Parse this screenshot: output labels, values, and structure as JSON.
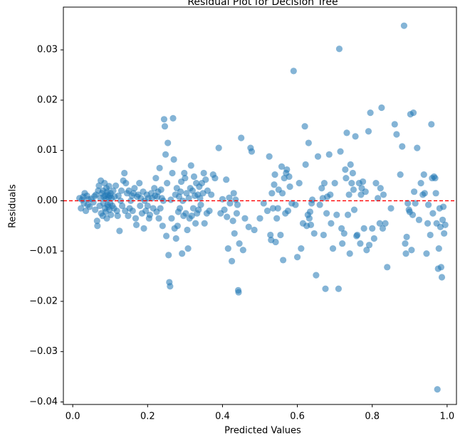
{
  "chart_data": {
    "type": "scatter",
    "title": "Residual Plot for Decision Tree",
    "xlabel": "Predicted Values",
    "ylabel": "Residuals",
    "xlim": [
      -0.025,
      1.025
    ],
    "ylim": [
      -0.0405,
      0.0385
    ],
    "xticks": [
      0.0,
      0.2,
      0.4,
      0.6,
      0.8,
      1.0
    ],
    "xtick_labels": [
      "0.0",
      "0.2",
      "0.4",
      "0.6",
      "0.8",
      "1.0"
    ],
    "yticks": [
      -0.04,
      -0.03,
      -0.02,
      -0.01,
      0.0,
      0.01,
      0.02,
      0.03
    ],
    "ytick_labels": [
      "−0.04",
      "−0.03",
      "−0.02",
      "−0.01",
      "0.00",
      "0.01",
      "0.02",
      "0.03"
    ],
    "reference_line": {
      "y": 0.0,
      "style": "dashed",
      "color": "#ff0000"
    },
    "marker_color": "#1f77b4",
    "marker_alpha": 0.55,
    "grid": false,
    "points": [
      [
        0.018,
        0.0005
      ],
      [
        0.022,
        -0.0015
      ],
      [
        0.025,
        0.0002
      ],
      [
        0.028,
        0.0008
      ],
      [
        0.03,
        -0.0005
      ],
      [
        0.032,
        0.0015
      ],
      [
        0.035,
        -0.002
      ],
      [
        0.038,
        0.001
      ],
      [
        0.04,
        -0.0008
      ],
      [
        0.042,
        0.0003
      ],
      [
        0.045,
        -0.0012
      ],
      [
        0.05,
        0.0004
      ],
      [
        0.055,
        -0.0003
      ],
      [
        0.058,
        0.0009
      ],
      [
        0.06,
        -0.0018
      ],
      [
        0.062,
        0.0012
      ],
      [
        0.065,
        -0.004
      ],
      [
        0.066,
        -0.005
      ],
      [
        0.068,
        0.002
      ],
      [
        0.07,
        0.003
      ],
      [
        0.072,
        -0.001
      ],
      [
        0.074,
        0.0005
      ],
      [
        0.075,
        0.004
      ],
      [
        0.076,
        -0.0025
      ],
      [
        0.078,
        0.0015
      ],
      [
        0.08,
        -0.003
      ],
      [
        0.081,
        0.002
      ],
      [
        0.082,
        -0.0005
      ],
      [
        0.083,
        0.0008
      ],
      [
        0.085,
        0.0035
      ],
      [
        0.086,
        -0.0015
      ],
      [
        0.087,
        0.001
      ],
      [
        0.088,
        -0.0022
      ],
      [
        0.089,
        0.0004
      ],
      [
        0.09,
        0.0025
      ],
      [
        0.091,
        -0.0035
      ],
      [
        0.092,
        0.0018
      ],
      [
        0.093,
        -0.0008
      ],
      [
        0.094,
        0.0012
      ],
      [
        0.095,
        -0.0012
      ],
      [
        0.096,
        0.0006
      ],
      [
        0.097,
        0.0029
      ],
      [
        0.098,
        -0.0018
      ],
      [
        0.099,
        0.001
      ],
      [
        0.1,
        -0.0005
      ],
      [
        0.101,
        0.0015
      ],
      [
        0.102,
        -0.0028
      ],
      [
        0.104,
        0.0005
      ],
      [
        0.106,
        -0.001
      ],
      [
        0.108,
        0.002
      ],
      [
        0.11,
        -0.0015
      ],
      [
        0.112,
        0.0008
      ],
      [
        0.115,
        0.003
      ],
      [
        0.118,
        -0.002
      ],
      [
        0.12,
        -0.003
      ],
      [
        0.122,
        0.001
      ],
      [
        0.125,
        -0.006
      ],
      [
        0.128,
        0.0
      ],
      [
        0.13,
        0.002
      ],
      [
        0.132,
        -0.001
      ],
      [
        0.135,
        0.004
      ],
      [
        0.138,
        0.0055
      ],
      [
        0.14,
        -0.002
      ],
      [
        0.142,
        0.0035
      ],
      [
        0.145,
        0.0015
      ],
      [
        0.148,
        -0.003
      ],
      [
        0.15,
        0.002
      ],
      [
        0.152,
        -0.0015
      ],
      [
        0.155,
        0.0
      ],
      [
        0.158,
        0.001
      ],
      [
        0.16,
        -0.002
      ],
      [
        0.162,
        0.0015
      ],
      [
        0.165,
        0.0025
      ],
      [
        0.168,
        -0.0035
      ],
      [
        0.17,
        -0.0048
      ],
      [
        0.172,
        0.0008
      ],
      [
        0.175,
        0.0012
      ],
      [
        0.178,
        0.0035
      ],
      [
        0.18,
        -0.001
      ],
      [
        0.182,
        0.0005
      ],
      [
        0.185,
        -0.0025
      ],
      [
        0.188,
        0.0018
      ],
      [
        0.19,
        -0.0055
      ],
      [
        0.192,
        0.0
      ],
      [
        0.195,
        -0.002
      ],
      [
        0.198,
        0.0012
      ],
      [
        0.2,
        -0.001
      ],
      [
        0.202,
        0.0005
      ],
      [
        0.204,
        -0.0035
      ],
      [
        0.206,
        -0.0028
      ],
      [
        0.21,
        0.0015
      ],
      [
        0.212,
        0.0005
      ],
      [
        0.215,
        -0.0015
      ],
      [
        0.218,
        0.0025
      ],
      [
        0.22,
        0.001
      ],
      [
        0.222,
        0.0045
      ],
      [
        0.224,
        -0.0022
      ],
      [
        0.226,
        0.0008
      ],
      [
        0.228,
        0.0018
      ],
      [
        0.23,
        -0.0035
      ],
      [
        0.232,
        0.0065
      ],
      [
        0.234,
        -0.0015
      ],
      [
        0.236,
        0.0022
      ],
      [
        0.238,
        0.0005
      ],
      [
        0.24,
        -0.005
      ],
      [
        0.242,
        0.0
      ],
      [
        0.244,
        0.0162
      ],
      [
        0.246,
        0.0148
      ],
      [
        0.248,
        0.0092
      ],
      [
        0.25,
        -0.007
      ],
      [
        0.252,
        0.0035
      ],
      [
        0.254,
        0.0115
      ],
      [
        0.256,
        -0.0108
      ],
      [
        0.258,
        -0.0162
      ],
      [
        0.26,
        -0.017
      ],
      [
        0.262,
        0.0002
      ],
      [
        0.264,
        -0.0035
      ],
      [
        0.266,
        0.0055
      ],
      [
        0.268,
        0.0164
      ],
      [
        0.27,
        0.0082
      ],
      [
        0.272,
        -0.0055
      ],
      [
        0.274,
        0.0012
      ],
      [
        0.276,
        -0.0075
      ],
      [
        0.278,
        0.0025
      ],
      [
        0.28,
        -0.005
      ],
      [
        0.282,
        -0.0022
      ],
      [
        0.284,
        0.0008
      ],
      [
        0.286,
        -0.0015
      ],
      [
        0.288,
        0.0018
      ],
      [
        0.29,
        0.0038
      ],
      [
        0.292,
        -0.0105
      ],
      [
        0.294,
        0.0
      ],
      [
        0.296,
        -0.003
      ],
      [
        0.298,
        0.0055
      ],
      [
        0.3,
        0.0045
      ],
      [
        0.302,
        -0.0025
      ],
      [
        0.304,
        0.0015
      ],
      [
        0.306,
        -0.0058
      ],
      [
        0.308,
        -0.0095
      ],
      [
        0.31,
        0.0005
      ],
      [
        0.312,
        -0.0035
      ],
      [
        0.314,
        0.0025
      ],
      [
        0.316,
        0.007
      ],
      [
        0.318,
        -0.003
      ],
      [
        0.32,
        0.002
      ],
      [
        0.322,
        -0.0015
      ],
      [
        0.324,
        0.0048
      ],
      [
        0.326,
        0.001
      ],
      [
        0.328,
        -0.0045
      ],
      [
        0.33,
        0.0035
      ],
      [
        0.332,
        -0.0025
      ],
      [
        0.334,
        0.0012
      ],
      [
        0.336,
        -0.0018
      ],
      [
        0.338,
        0.0028
      ],
      [
        0.34,
        0.0005
      ],
      [
        0.342,
        -0.0008
      ],
      [
        0.345,
        0.0035
      ],
      [
        0.348,
        0.0015
      ],
      [
        0.35,
        0.0055
      ],
      [
        0.352,
        -0.0045
      ],
      [
        0.355,
        0.0042
      ],
      [
        0.358,
        -0.0025
      ],
      [
        0.36,
        0.002
      ],
      [
        0.365,
        -0.002
      ],
      [
        0.37,
        0.0012
      ],
      [
        0.375,
        0.0052
      ],
      [
        0.38,
        0.0045
      ],
      [
        0.39,
        0.0105
      ],
      [
        0.395,
        -0.0025
      ],
      [
        0.4,
        0.0003
      ],
      [
        0.405,
        -0.0018
      ],
      [
        0.41,
        0.0042
      ],
      [
        0.412,
        -0.0032
      ],
      [
        0.415,
        -0.0095
      ],
      [
        0.418,
        0.0006
      ],
      [
        0.42,
        -0.0005
      ],
      [
        0.425,
        -0.012
      ],
      [
        0.428,
        -0.004
      ],
      [
        0.43,
        0.0015
      ],
      [
        0.432,
        -0.0065
      ],
      [
        0.435,
        0.0002
      ],
      [
        0.438,
        -0.0025
      ],
      [
        0.44,
        -0.0008
      ],
      [
        0.442,
        -0.0178
      ],
      [
        0.443,
        -0.0182
      ],
      [
        0.445,
        -0.0085
      ],
      [
        0.45,
        0.0125
      ],
      [
        0.455,
        -0.0098
      ],
      [
        0.46,
        -0.0035
      ],
      [
        0.47,
        -0.0052
      ],
      [
        0.475,
        0.0105
      ],
      [
        0.478,
        0.0098
      ],
      [
        0.485,
        -0.0058
      ],
      [
        0.5,
        -0.0035
      ],
      [
        0.51,
        -0.0005
      ],
      [
        0.52,
        -0.002
      ],
      [
        0.525,
        0.0088
      ],
      [
        0.528,
        -0.0068
      ],
      [
        0.53,
        -0.0078
      ],
      [
        0.532,
        0.0015
      ],
      [
        0.535,
        -0.0015
      ],
      [
        0.538,
        0.0032
      ],
      [
        0.54,
        0.0052
      ],
      [
        0.542,
        -0.0082
      ],
      [
        0.545,
        -0.0035
      ],
      [
        0.548,
        -0.0015
      ],
      [
        0.55,
        0.0022
      ],
      [
        0.555,
        -0.0068
      ],
      [
        0.558,
        0.0068
      ],
      [
        0.56,
        0.0015
      ],
      [
        0.562,
        -0.0118
      ],
      [
        0.565,
        0.0045
      ],
      [
        0.568,
        -0.0025
      ],
      [
        0.57,
        0.0055
      ],
      [
        0.572,
        0.0062
      ],
      [
        0.575,
        -0.002
      ],
      [
        0.578,
        0.0048
      ],
      [
        0.58,
        0.0028
      ],
      [
        0.585,
        -0.0005
      ],
      [
        0.59,
        0.0258
      ],
      [
        0.595,
        -0.0008
      ],
      [
        0.6,
        -0.0112
      ],
      [
        0.605,
        0.0035
      ],
      [
        0.61,
        -0.0095
      ],
      [
        0.615,
        -0.0045
      ],
      [
        0.62,
        0.0148
      ],
      [
        0.622,
        0.0072
      ],
      [
        0.625,
        -0.005
      ],
      [
        0.628,
        -0.0028
      ],
      [
        0.63,
        0.0115
      ],
      [
        0.632,
        -0.0035
      ],
      [
        0.634,
        -0.0022
      ],
      [
        0.636,
        -0.0048
      ],
      [
        0.638,
        -0.0005
      ],
      [
        0.64,
        0.0002
      ],
      [
        0.645,
        -0.0065
      ],
      [
        0.65,
        -0.0148
      ],
      [
        0.655,
        0.0088
      ],
      [
        0.66,
        -0.0008
      ],
      [
        0.665,
        0.0025
      ],
      [
        0.668,
        0.0005
      ],
      [
        0.67,
        -0.0068
      ],
      [
        0.672,
        0.0035
      ],
      [
        0.675,
        -0.0175
      ],
      [
        0.678,
        -0.0025
      ],
      [
        0.68,
        0.0008
      ],
      [
        0.685,
        0.0092
      ],
      [
        0.688,
        0.0012
      ],
      [
        0.69,
        -0.0045
      ],
      [
        0.695,
        -0.0095
      ],
      [
        0.7,
        0.0035
      ],
      [
        0.705,
        -0.0028
      ],
      [
        0.71,
        -0.0175
      ],
      [
        0.712,
        0.0302
      ],
      [
        0.715,
        0.0098
      ],
      [
        0.718,
        -0.0055
      ],
      [
        0.72,
        -0.0085
      ],
      [
        0.725,
        -0.0065
      ],
      [
        0.728,
        0.0062
      ],
      [
        0.73,
        0.0045
      ],
      [
        0.732,
        0.0135
      ],
      [
        0.735,
        -0.0028
      ],
      [
        0.738,
        0.0012
      ],
      [
        0.74,
        -0.0105
      ],
      [
        0.742,
        0.0072
      ],
      [
        0.745,
        0.0035
      ],
      [
        0.748,
        0.0055
      ],
      [
        0.75,
        0.0022
      ],
      [
        0.752,
        -0.0018
      ],
      [
        0.755,
        0.0128
      ],
      [
        0.758,
        -0.007
      ],
      [
        0.76,
        -0.0068
      ],
      [
        0.765,
        0.0035
      ],
      [
        0.768,
        -0.0085
      ],
      [
        0.77,
        0.0012
      ],
      [
        0.772,
        0.0025
      ],
      [
        0.775,
        0.0038
      ],
      [
        0.778,
        -0.0055
      ],
      [
        0.782,
        0.0018
      ],
      [
        0.785,
        -0.0098
      ],
      [
        0.79,
        0.0138
      ],
      [
        0.792,
        -0.0088
      ],
      [
        0.795,
        0.0175
      ],
      [
        0.8,
        -0.0055
      ],
      [
        0.805,
        -0.0075
      ],
      [
        0.81,
        0.0035
      ],
      [
        0.815,
        0.0005
      ],
      [
        0.82,
        -0.0045
      ],
      [
        0.822,
        0.0025
      ],
      [
        0.825,
        0.0185
      ],
      [
        0.828,
        -0.0055
      ],
      [
        0.83,
        0.0012
      ],
      [
        0.835,
        -0.0045
      ],
      [
        0.84,
        -0.0132
      ],
      [
        0.85,
        -0.0015
      ],
      [
        0.86,
        0.0152
      ],
      [
        0.865,
        0.0132
      ],
      [
        0.875,
        0.0052
      ],
      [
        0.88,
        0.0108
      ],
      [
        0.885,
        0.0348
      ],
      [
        0.888,
        -0.0085
      ],
      [
        0.89,
        -0.0105
      ],
      [
        0.892,
        -0.0072
      ],
      [
        0.895,
        -0.0005
      ],
      [
        0.898,
        -0.0018
      ],
      [
        0.9,
        -0.0022
      ],
      [
        0.902,
        0.0172
      ],
      [
        0.905,
        -0.0098
      ],
      [
        0.908,
        -0.0028
      ],
      [
        0.91,
        0.0175
      ],
      [
        0.912,
        0.0018
      ],
      [
        0.915,
        -0.0005
      ],
      [
        0.92,
        0.0105
      ],
      [
        0.925,
        -0.0038
      ],
      [
        0.93,
        0.0035
      ],
      [
        0.935,
        0.0012
      ],
      [
        0.938,
        0.0052
      ],
      [
        0.94,
        0.0015
      ],
      [
        0.945,
        -0.0105
      ],
      [
        0.948,
        -0.0045
      ],
      [
        0.95,
        -0.0008
      ],
      [
        0.955,
        -0.0068
      ],
      [
        0.958,
        0.0152
      ],
      [
        0.96,
        0.0045
      ],
      [
        0.962,
        -0.0025
      ],
      [
        0.965,
        0.0048
      ],
      [
        0.968,
        0.0045
      ],
      [
        0.97,
        0.0015
      ],
      [
        0.972,
        -0.0045
      ],
      [
        0.974,
        -0.0375
      ],
      [
        0.976,
        -0.0135
      ],
      [
        0.978,
        -0.0095
      ],
      [
        0.98,
        -0.0015
      ],
      [
        0.982,
        -0.0052
      ],
      [
        0.984,
        -0.0132
      ],
      [
        0.986,
        -0.0152
      ],
      [
        0.988,
        -0.0038
      ],
      [
        0.99,
        -0.0012
      ],
      [
        0.992,
        -0.0065
      ],
      [
        0.995,
        -0.0048
      ]
    ]
  }
}
